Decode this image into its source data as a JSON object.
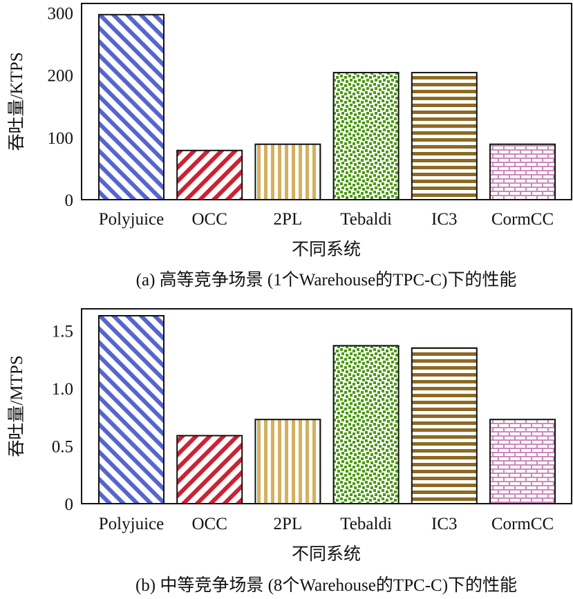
{
  "figure": {
    "systems": [
      "Polyjuice",
      "OCC",
      "2PL",
      "Tebaldi",
      "IC3",
      "CormCC"
    ],
    "colors": {
      "Polyjuice": "#5566cc",
      "OCC": "#cc2233",
      "2PL": "#d4b060",
      "Tebaldi": "#4a9a10",
      "IC3": "#8c6a22",
      "CormCC": "#cc88bb"
    }
  },
  "chart_data": [
    {
      "type": "bar",
      "title": "(a) 高等竞争场景 (1个Warehouse的TPC-C)下的性能",
      "xlabel": "不同系统",
      "ylabel": "吞吐量/KTPS",
      "categories": [
        "Polyjuice",
        "OCC",
        "2PL",
        "Tebaldi",
        "IC3",
        "CormCC"
      ],
      "values": [
        297,
        79,
        89,
        204,
        204,
        89
      ],
      "ylim": [
        0,
        315
      ],
      "yticks": [
        0,
        100,
        200,
        300
      ],
      "ytick_labels": [
        "0",
        "100",
        "200",
        "300"
      ],
      "grid": false,
      "legend": "none"
    },
    {
      "type": "bar",
      "title": "(b) 中等竞争场景 (8个Warehouse的TPC-C)下的性能",
      "xlabel": "不同系统",
      "ylabel": "吞吐量/MTPS",
      "categories": [
        "Polyjuice",
        "OCC",
        "2PL",
        "Tebaldi",
        "IC3",
        "CormCC"
      ],
      "values": [
        1.63,
        0.59,
        0.73,
        1.37,
        1.35,
        0.73
      ],
      "ylim": [
        0,
        1.69
      ],
      "yticks": [
        0,
        0.5,
        1.0,
        1.5
      ],
      "ytick_labels": [
        "0",
        "0.5",
        "1.0",
        "1.5"
      ],
      "grid": false,
      "legend": "none"
    }
  ]
}
